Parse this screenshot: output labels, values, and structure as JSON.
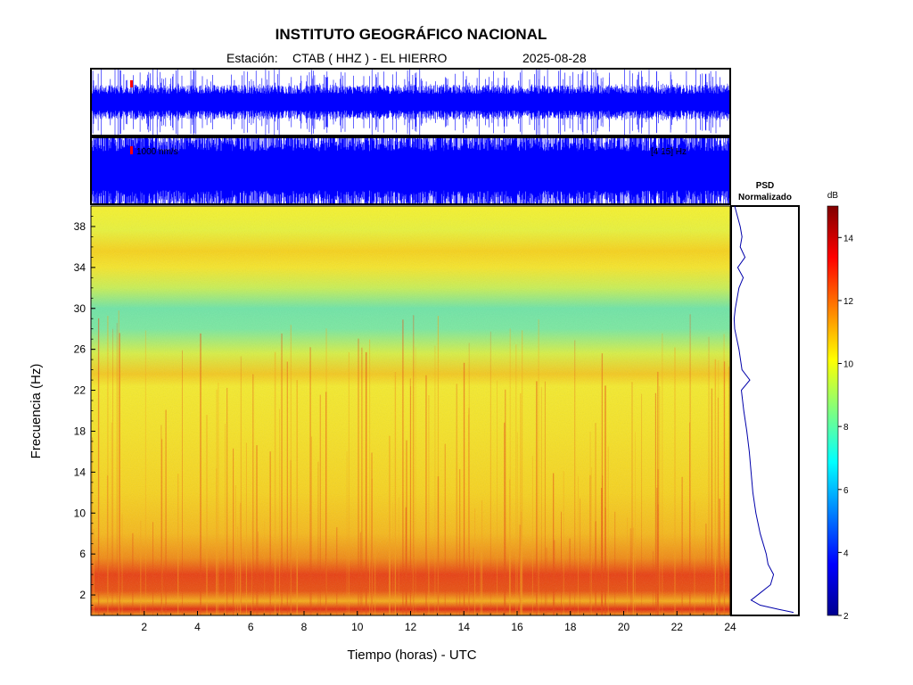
{
  "figure": {
    "title": "INSTITUTO GEOGRÁFICO NACIONAL",
    "station_label": "Estación:",
    "station": "CTAB ( HHZ ) - EL HIERRO",
    "date": "2025-08-28"
  },
  "trace_upper": {
    "scale_label": "",
    "band_label": "",
    "color": "#0000ff",
    "marker_color": "#ff0000"
  },
  "trace_lower": {
    "scale_label": "1000 nm/s",
    "band_label": "[4 15] Hz",
    "color": "#0000ff",
    "marker_color": "#ff0000"
  },
  "psd": {
    "title_line1": "PSD",
    "title_line2": "Normalizado",
    "line_color": "#0000aa",
    "profile": [
      {
        "f": 0.3,
        "v": 1.0
      },
      {
        "f": 0.6,
        "v": 0.75
      },
      {
        "f": 1.0,
        "v": 0.45
      },
      {
        "f": 1.5,
        "v": 0.3
      },
      {
        "f": 2.2,
        "v": 0.45
      },
      {
        "f": 3.0,
        "v": 0.62
      },
      {
        "f": 4.0,
        "v": 0.67
      },
      {
        "f": 5.0,
        "v": 0.58
      },
      {
        "f": 6.0,
        "v": 0.55
      },
      {
        "f": 8.0,
        "v": 0.45
      },
      {
        "f": 10.0,
        "v": 0.38
      },
      {
        "f": 12.0,
        "v": 0.33
      },
      {
        "f": 14.0,
        "v": 0.3
      },
      {
        "f": 16.0,
        "v": 0.27
      },
      {
        "f": 18.0,
        "v": 0.23
      },
      {
        "f": 20.0,
        "v": 0.18
      },
      {
        "f": 22.0,
        "v": 0.14
      },
      {
        "f": 23.0,
        "v": 0.28
      },
      {
        "f": 24.0,
        "v": 0.15
      },
      {
        "f": 26.0,
        "v": 0.1
      },
      {
        "f": 28.0,
        "v": 0.03
      },
      {
        "f": 29.0,
        "v": 0.02
      },
      {
        "f": 30.0,
        "v": 0.04
      },
      {
        "f": 32.0,
        "v": 0.1
      },
      {
        "f": 33.0,
        "v": 0.17
      },
      {
        "f": 34.0,
        "v": 0.08
      },
      {
        "f": 35.0,
        "v": 0.2
      },
      {
        "f": 36.0,
        "v": 0.12
      },
      {
        "f": 37.0,
        "v": 0.15
      },
      {
        "f": 38.0,
        "v": 0.12
      },
      {
        "f": 40.0,
        "v": 0.03
      }
    ]
  },
  "colorbar": {
    "unit": "dB",
    "ticks": [
      2,
      4,
      6,
      8,
      10,
      12,
      14
    ],
    "range": [
      2,
      15
    ]
  },
  "chart_data": {
    "type": "heatmap",
    "xlabel": "Tiempo (horas) - UTC",
    "ylabel": "Frecuencia  (Hz)",
    "xlim": [
      0,
      24
    ],
    "ylim": [
      0,
      40
    ],
    "xticks": [
      2,
      4,
      6,
      8,
      10,
      12,
      14,
      16,
      18,
      20,
      22,
      24
    ],
    "yticks": [
      2,
      6,
      10,
      14,
      18,
      22,
      26,
      30,
      34,
      38
    ],
    "value_unit": "dB",
    "value_range": [
      2,
      15
    ],
    "mean_level_by_frequency": [
      {
        "f": 0.5,
        "db": 13.0
      },
      {
        "f": 1.5,
        "db": 10.5
      },
      {
        "f": 3.0,
        "db": 13.0
      },
      {
        "f": 4.5,
        "db": 12.8
      },
      {
        "f": 6.0,
        "db": 12.0
      },
      {
        "f": 8.0,
        "db": 11.5
      },
      {
        "f": 10.0,
        "db": 11.0
      },
      {
        "f": 14.0,
        "db": 10.6
      },
      {
        "f": 18.0,
        "db": 10.3
      },
      {
        "f": 22.0,
        "db": 9.9
      },
      {
        "f": 23.0,
        "db": 11.3
      },
      {
        "f": 24.0,
        "db": 9.6
      },
      {
        "f": 26.0,
        "db": 9.0
      },
      {
        "f": 29.0,
        "db": 8.2
      },
      {
        "f": 31.0,
        "db": 8.8
      },
      {
        "f": 33.0,
        "db": 10.1
      },
      {
        "f": 35.0,
        "db": 10.3
      },
      {
        "f": 37.0,
        "db": 9.8
      },
      {
        "f": 38.5,
        "db": 9.2
      },
      {
        "f": 40.0,
        "db": 8.8
      }
    ]
  }
}
